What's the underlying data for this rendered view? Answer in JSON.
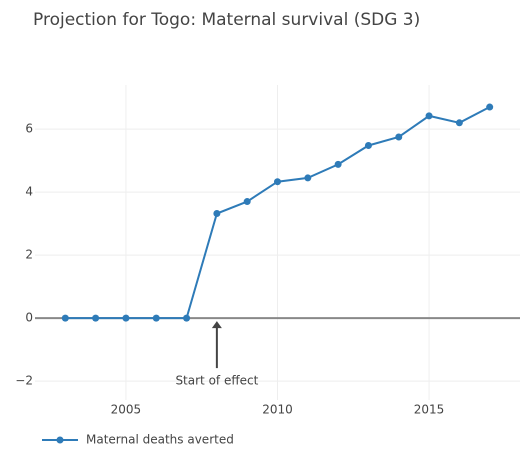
{
  "chart_data": {
    "type": "line",
    "title": "Projection for Togo: Maternal survival (SDG 3)",
    "x": [
      2003,
      2004,
      2005,
      2006,
      2007,
      2008,
      2009,
      2010,
      2011,
      2012,
      2013,
      2014,
      2015,
      2016,
      2017
    ],
    "series": [
      {
        "name": "Maternal deaths averted",
        "color": "#2e7bb8",
        "values": [
          0,
          0,
          0,
          0,
          0,
          3.32,
          3.7,
          4.33,
          4.45,
          4.88,
          5.48,
          5.75,
          6.42,
          6.2,
          6.7
        ]
      }
    ],
    "xlim": [
      2002,
      2018
    ],
    "xticks": [
      2005,
      2010,
      2015
    ],
    "ylim": [
      -2.6,
      7.4
    ],
    "yticks": [
      {
        "value": -2,
        "label": "−2"
      },
      0,
      2,
      4,
      6
    ],
    "grid": true,
    "legend": "bottom-left",
    "annotations": [
      {
        "text": "Start of effect",
        "x": 2008,
        "y": 0
      }
    ]
  }
}
